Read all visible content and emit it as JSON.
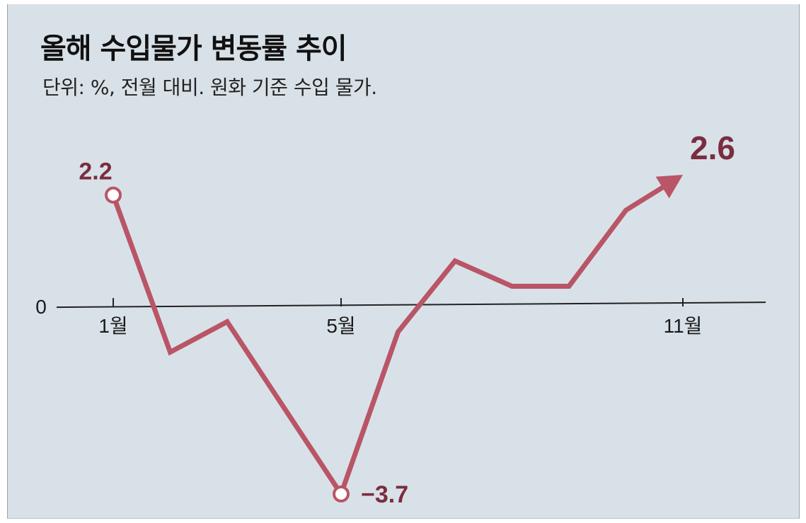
{
  "header": {
    "title": "올해 수입물가 변동률 추이",
    "subtitle": "단위: %, 전월 대비. 원화 기준 수입 물가."
  },
  "colors": {
    "background": "#d9e1e8",
    "line": "#b95566",
    "label": "#7a2d40",
    "axis": "#222222"
  },
  "chart_data": {
    "type": "line",
    "title": "올해 수입물가 변동률 추이",
    "subtitle": "단위: %, 전월 대비. 원화 기준 수입 물가.",
    "x": [
      1,
      2,
      3,
      4,
      5,
      6,
      7,
      8,
      9,
      10,
      11
    ],
    "x_tick_labels": [
      {
        "x": 1,
        "label": "1월"
      },
      {
        "x": 5,
        "label": "5월"
      },
      {
        "x": 11,
        "label": "11월"
      }
    ],
    "y_tick_labels": [
      {
        "y": 0,
        "label": "0"
      }
    ],
    "series": [
      {
        "values": [
          2.2,
          -0.9,
          -0.3,
          -2.0,
          -3.7,
          -0.5,
          0.9,
          0.4,
          0.4,
          1.9,
          2.6
        ],
        "end": "arrow"
      }
    ],
    "data_labels": [
      {
        "x": 1,
        "text": "2.2",
        "marker": "circle",
        "position": "above"
      },
      {
        "x": 5,
        "text": "−3.7",
        "marker": "circle",
        "position": "right"
      },
      {
        "x": 11,
        "text": "2.6",
        "marker": "arrow",
        "position": "above"
      }
    ],
    "ylim": [
      -3.7,
      2.6
    ],
    "grid": false,
    "legend": "none"
  }
}
